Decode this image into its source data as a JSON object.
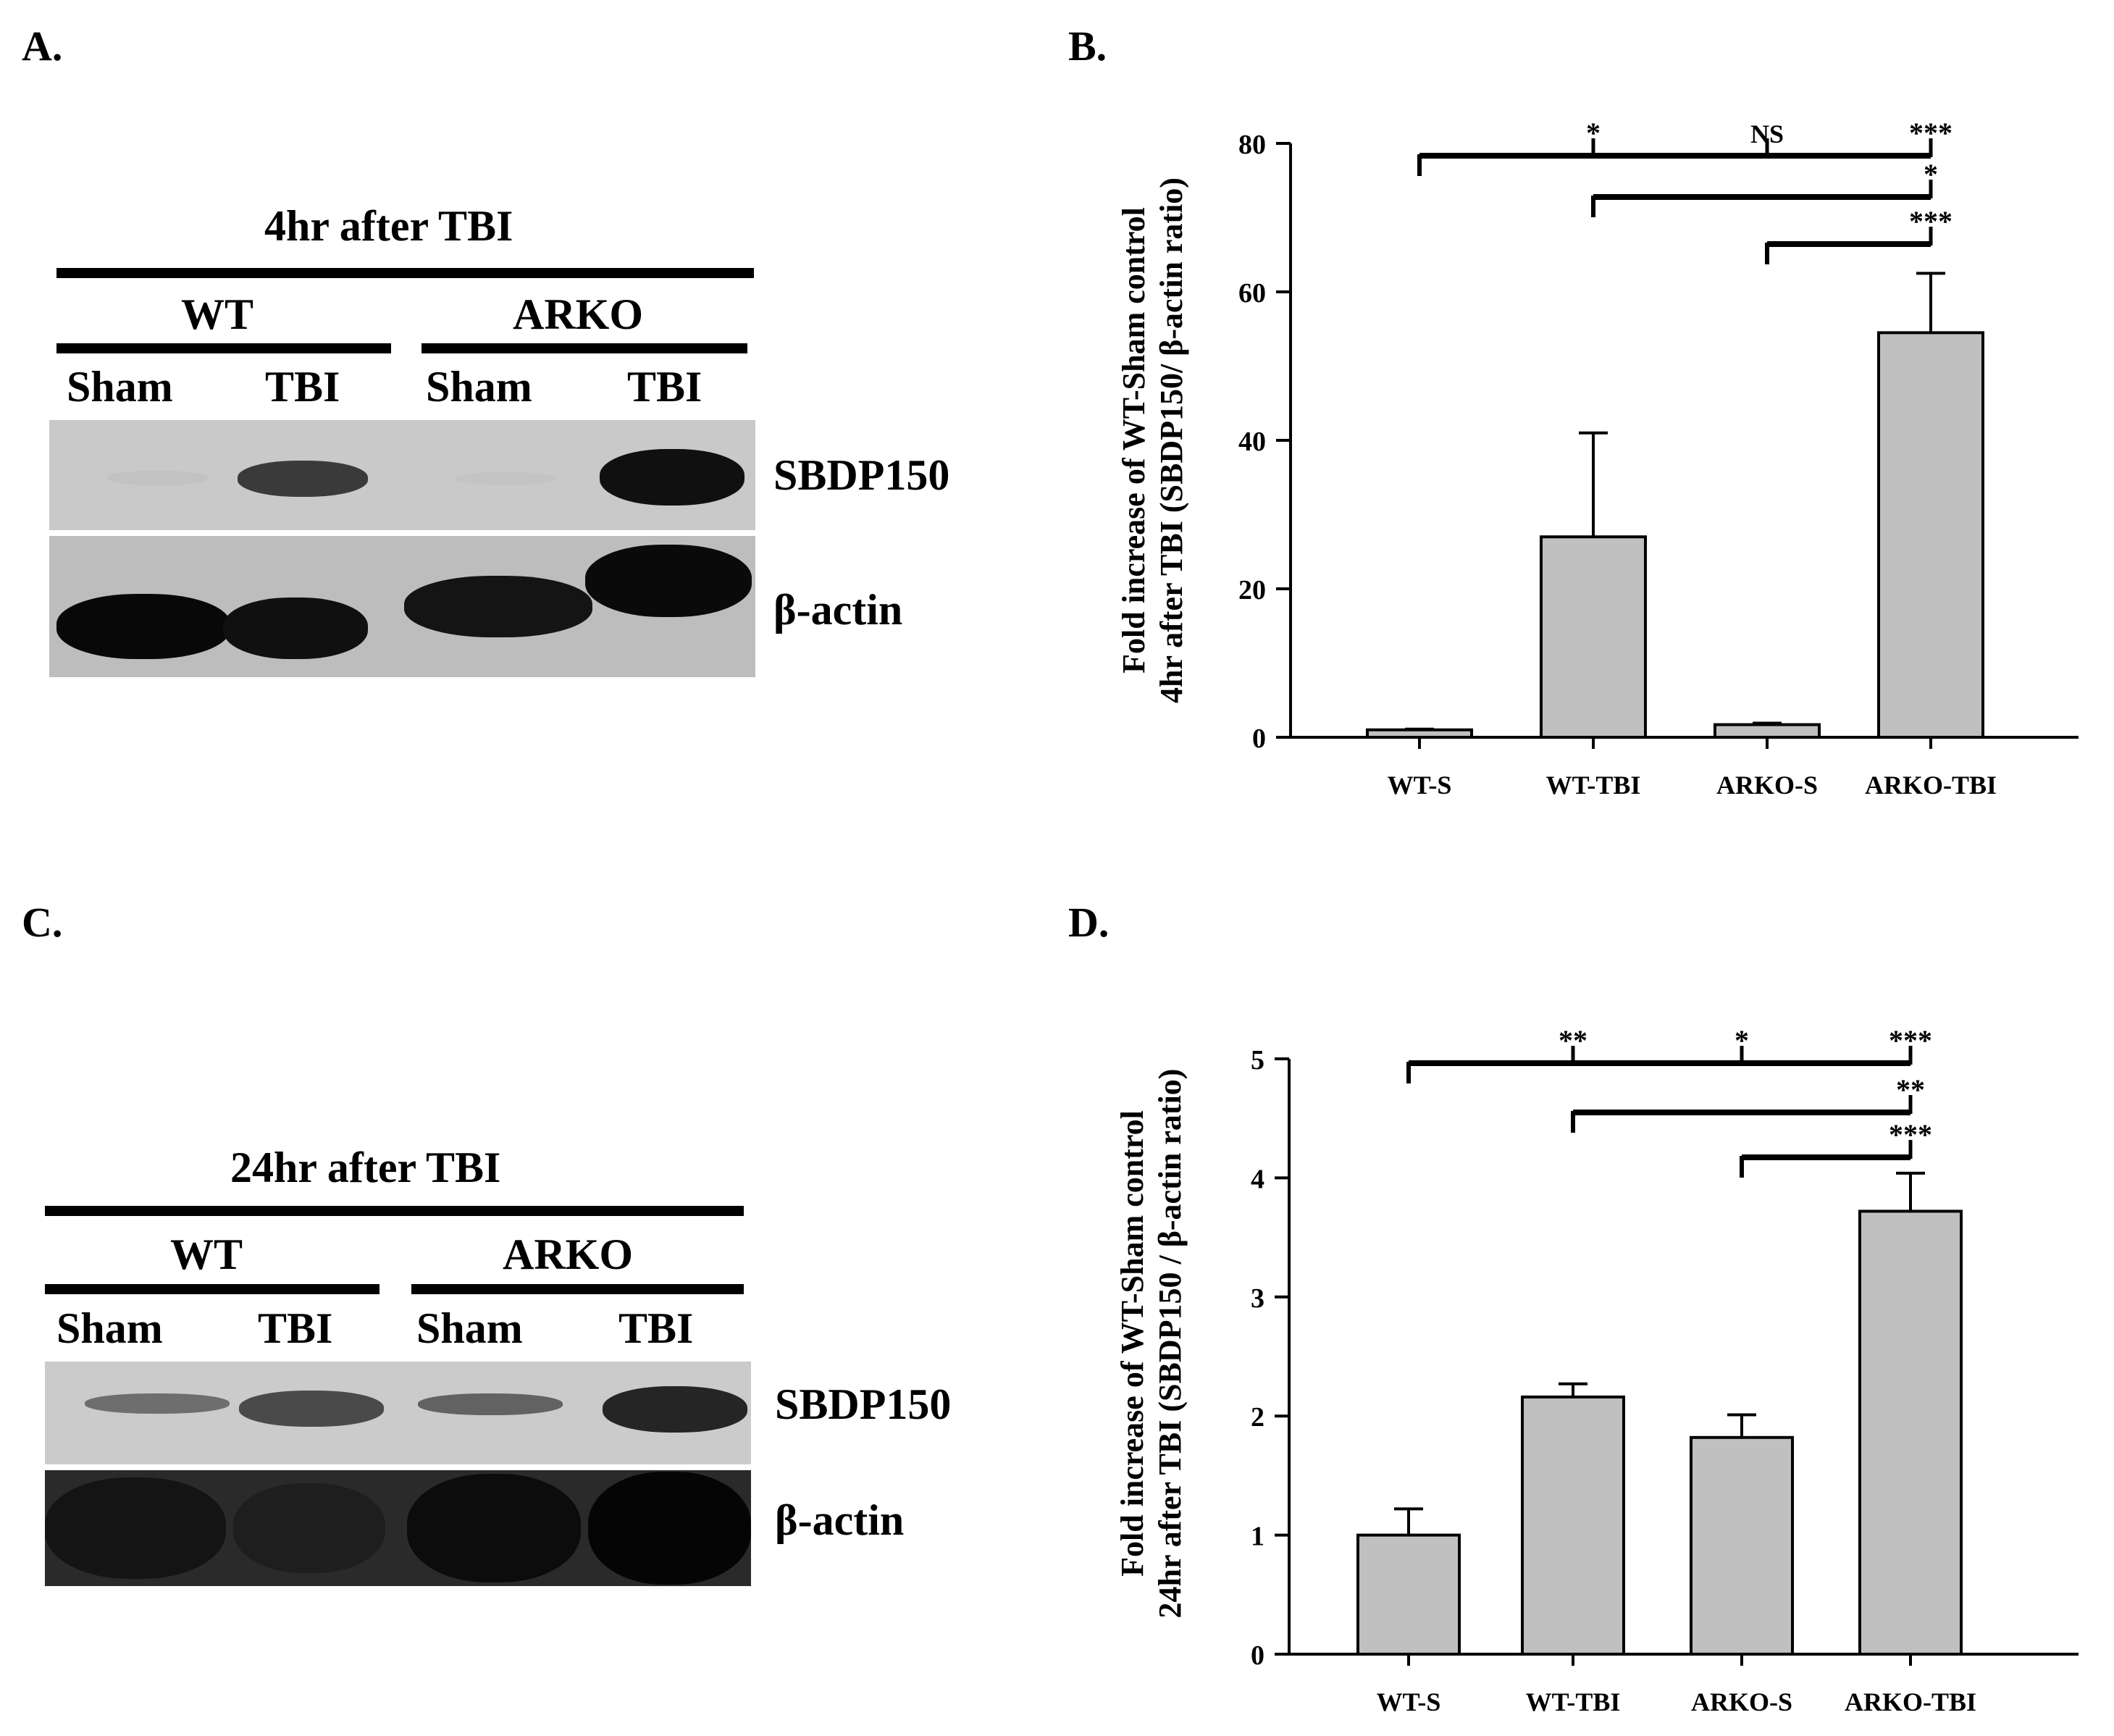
{
  "panels": {
    "a": "A.",
    "b": "B.",
    "c": "C.",
    "d": "D."
  },
  "blots": [
    {
      "title": "4hr after TBI",
      "groups": [
        "WT",
        "ARKO"
      ],
      "lanes": [
        "Sham",
        "TBI",
        "Sham",
        "TBI"
      ],
      "rows": [
        "SBDP150",
        "β-actin"
      ]
    },
    {
      "title": "24hr after TBI",
      "groups": [
        "WT",
        "ARKO"
      ],
      "lanes": [
        "Sham",
        "TBI",
        "Sham",
        "TBI"
      ],
      "rows": [
        "SBDP150",
        "β-actin"
      ]
    }
  ],
  "chart_data": [
    {
      "type": "bar",
      "categories": [
        "WT-S",
        "WT-TBI",
        "ARKO-S",
        "ARKO-TBI"
      ],
      "values": [
        1.0,
        27.0,
        1.7,
        54.5
      ],
      "errors": [
        0.1,
        14.0,
        0.2,
        8.0
      ],
      "ylabel_lines": [
        "Fold increase of WT-Sham control",
        "4hr after TBI (SBDP150/ β-actin ratio)"
      ],
      "ylim": [
        0,
        80
      ],
      "yticks": [
        "0",
        "20",
        "40",
        "60",
        "80"
      ],
      "significance": {
        "top": {
          "from": "WT-S",
          "marks": [
            {
              "at": "WT-TBI",
              "label": "*"
            },
            {
              "at": "ARKO-S",
              "label": "NS"
            },
            {
              "at": "ARKO-TBI",
              "label": "***"
            }
          ]
        },
        "middle": {
          "from": "WT-TBI",
          "marks": [
            {
              "at": "ARKO-TBI",
              "label": "*"
            }
          ]
        },
        "bottom": {
          "from": "ARKO-S",
          "marks": [
            {
              "at": "ARKO-TBI",
              "label": "***"
            }
          ]
        }
      },
      "bar_color": "#c0c0c0"
    },
    {
      "type": "bar",
      "categories": [
        "WT-S",
        "WT-TBI",
        "ARKO-S",
        "ARKO-TBI"
      ],
      "values": [
        1.0,
        2.16,
        1.82,
        3.72
      ],
      "errors": [
        0.22,
        0.11,
        0.19,
        0.32
      ],
      "ylabel_lines": [
        "Fold increase of WT-Sham control",
        "24hr after TBI (SBDP150 / β-actin ratio)"
      ],
      "ylim": [
        0,
        5
      ],
      "yticks": [
        "0",
        "1",
        "2",
        "3",
        "4",
        "5"
      ],
      "significance": {
        "top": {
          "from": "WT-S",
          "marks": [
            {
              "at": "WT-TBI",
              "label": "**"
            },
            {
              "at": "ARKO-S",
              "label": "*"
            },
            {
              "at": "ARKO-TBI",
              "label": "***"
            }
          ]
        },
        "middle": {
          "from": "WT-TBI",
          "marks": [
            {
              "at": "ARKO-TBI",
              "label": "**"
            }
          ]
        },
        "bottom": {
          "from": "ARKO-S",
          "marks": [
            {
              "at": "ARKO-TBI",
              "label": "***"
            }
          ]
        }
      },
      "bar_color": "#c0c0c0"
    }
  ]
}
